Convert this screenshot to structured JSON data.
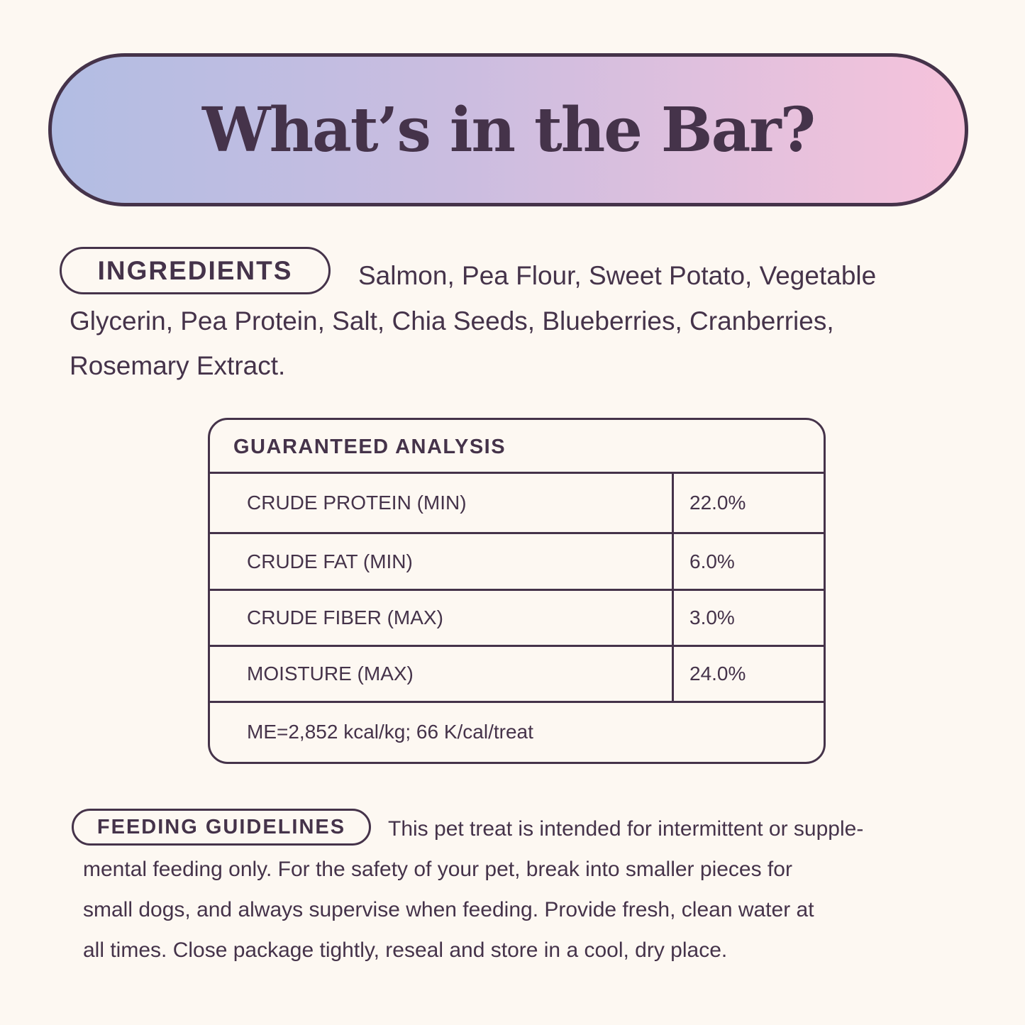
{
  "title": "What’s in the Bar?",
  "colors": {
    "text": "#45334a",
    "background": "#fdf8f2",
    "gradient_start": "#b2bde3",
    "gradient_end": "#f6c3db"
  },
  "ingredients": {
    "label": "INGREDIENTS",
    "lines": [
      "Salmon, Pea Flour, Sweet Potato, Vegetable",
      "Glycerin, Pea Protein, Salt, Chia Seeds, Blueberries, Cranberries,",
      "Rosemary Extract."
    ]
  },
  "analysis": {
    "title": "GUARANTEED ANALYSIS",
    "rows": [
      {
        "label": "CRUDE PROTEIN (MIN)",
        "value": "22.0%"
      },
      {
        "label": "CRUDE FAT (MIN)",
        "value": "6.0%"
      },
      {
        "label": "CRUDE FIBER (MAX)",
        "value": "3.0%"
      },
      {
        "label": "MOISTURE (MAX)",
        "value": "24.0%"
      }
    ],
    "footer": "ME=2,852 kcal/kg; 66 K/cal/treat"
  },
  "feeding": {
    "label": "FEEDING GUIDELINES",
    "lines": [
      "This pet treat is intended for intermittent or supple-",
      "mental feeding only. For the safety of your pet, break into smaller pieces for",
      "small dogs, and always supervise when feeding. Provide fresh, clean water at",
      "all times. Close package tightly, reseal and store in a cool, dry place."
    ]
  }
}
